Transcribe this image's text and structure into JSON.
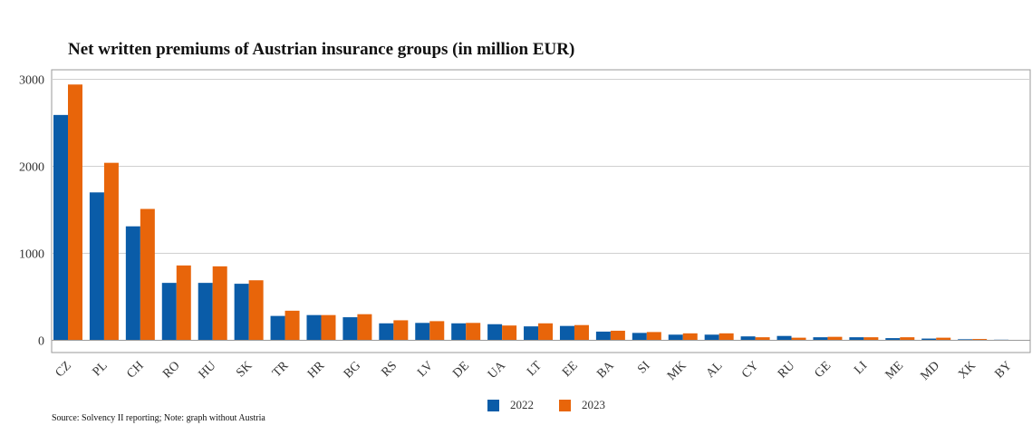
{
  "chart_data": {
    "type": "bar",
    "title": "Net written premiums of Austrian insurance groups (in million EUR)",
    "xlabel": "",
    "ylabel": "",
    "ylim": [
      0,
      3100
    ],
    "yticks": [
      0,
      1000,
      2000,
      3000
    ],
    "grid": true,
    "legend_position": "bottom",
    "categories": [
      "CZ",
      "PL",
      "CH",
      "RO",
      "HU",
      "SK",
      "TR",
      "HR",
      "BG",
      "RS",
      "LV",
      "DE",
      "UA",
      "LT",
      "EE",
      "BA",
      "SI",
      "MK",
      "AL",
      "CY",
      "RU",
      "GE",
      "LI",
      "ME",
      "MD",
      "XK",
      "BY"
    ],
    "series": [
      {
        "name": "2022",
        "color": "#0a5ca8",
        "values": [
          2590,
          1700,
          1310,
          660,
          660,
          650,
          280,
          290,
          265,
          195,
          200,
          195,
          185,
          160,
          165,
          100,
          85,
          65,
          65,
          45,
          50,
          35,
          35,
          25,
          20,
          12,
          7
        ]
      },
      {
        "name": "2023",
        "color": "#e8650a",
        "values": [
          2940,
          2040,
          1510,
          860,
          850,
          690,
          340,
          290,
          300,
          230,
          220,
          200,
          170,
          195,
          175,
          110,
          95,
          80,
          80,
          35,
          30,
          40,
          35,
          35,
          30,
          15,
          5
        ]
      }
    ],
    "source_note": "Source: Solvency II reporting; Note: graph without Austria"
  }
}
